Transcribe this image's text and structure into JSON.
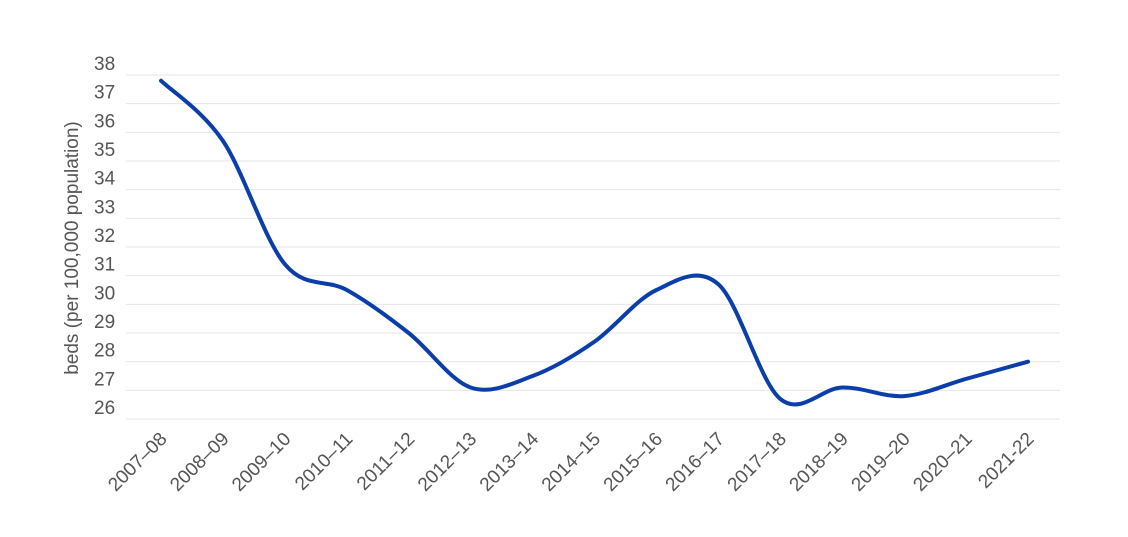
{
  "chart_data": {
    "type": "line",
    "title": "",
    "xlabel": "",
    "ylabel": "beds (per 100,000 population)",
    "categories": [
      "2007–08",
      "2008–09",
      "2009–10",
      "2010–11",
      "2011–12",
      "2012–13",
      "2013–14",
      "2014–15",
      "2015–16",
      "2016–17",
      "2017–18",
      "2018–19",
      "2019–20",
      "2020–21",
      "2021-22"
    ],
    "series": [
      {
        "values": [
          37.8,
          35.7,
          31.4,
          30.5,
          29.0,
          27.1,
          27.5,
          28.7,
          30.5,
          30.7,
          26.7,
          27.1,
          26.8,
          27.4,
          28.0
        ]
      }
    ],
    "ylim": [
      26,
      38
    ],
    "yticks": [
      26,
      27,
      28,
      29,
      30,
      31,
      32,
      33,
      34,
      35,
      36,
      37,
      38
    ],
    "grid": true,
    "legend": "none",
    "colors": {
      "line": "#0a3eaa",
      "grid": "#e6e6e6",
      "text": "#555555"
    }
  }
}
